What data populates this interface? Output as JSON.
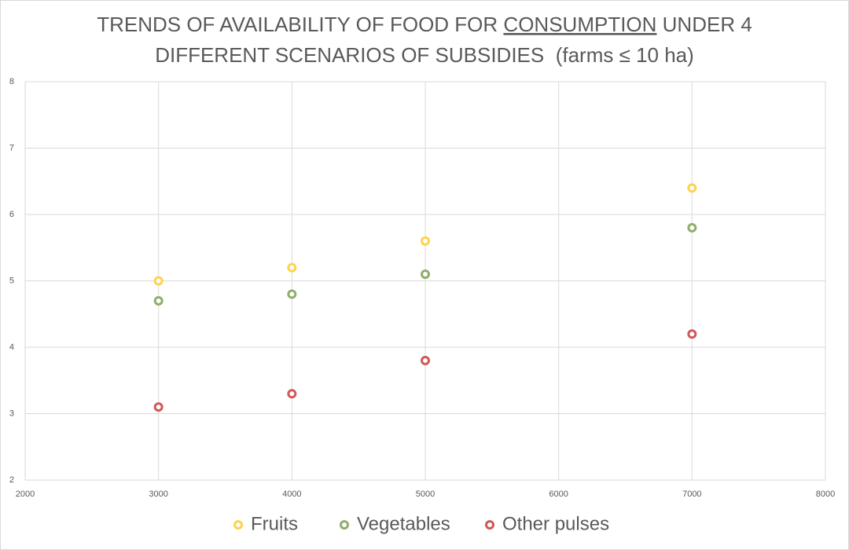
{
  "chart_data": {
    "type": "scatter",
    "title": {
      "line1": [
        "TRENDS OF AVAILABILITY OF FOOD FOR",
        "CONSUMPTION",
        "UNDER 4"
      ],
      "line2": "DIFFERENT SCENARIOS OF SUBSIDIES  (farms ≤ 10 ha)"
    },
    "x": [
      3000,
      4000,
      5000,
      7000
    ],
    "series": [
      {
        "name": "Fruits",
        "color": "#ffd24d",
        "values": [
          5.0,
          5.2,
          5.6,
          6.4
        ]
      },
      {
        "name": "Vegetables",
        "color": "#8fae6a",
        "values": [
          4.7,
          4.8,
          5.1,
          5.8
        ]
      },
      {
        "name": "Other pulses",
        "color": "#d05858",
        "values": [
          3.1,
          3.3,
          3.8,
          4.2
        ]
      }
    ],
    "xlim": [
      2000,
      8000
    ],
    "xticks": [
      2000,
      3000,
      4000,
      5000,
      6000,
      7000,
      8000
    ],
    "ylim": [
      2,
      8
    ],
    "yticks": [
      2,
      3,
      4,
      5,
      6,
      7,
      8
    ],
    "grid": true,
    "legend": "bottom"
  }
}
